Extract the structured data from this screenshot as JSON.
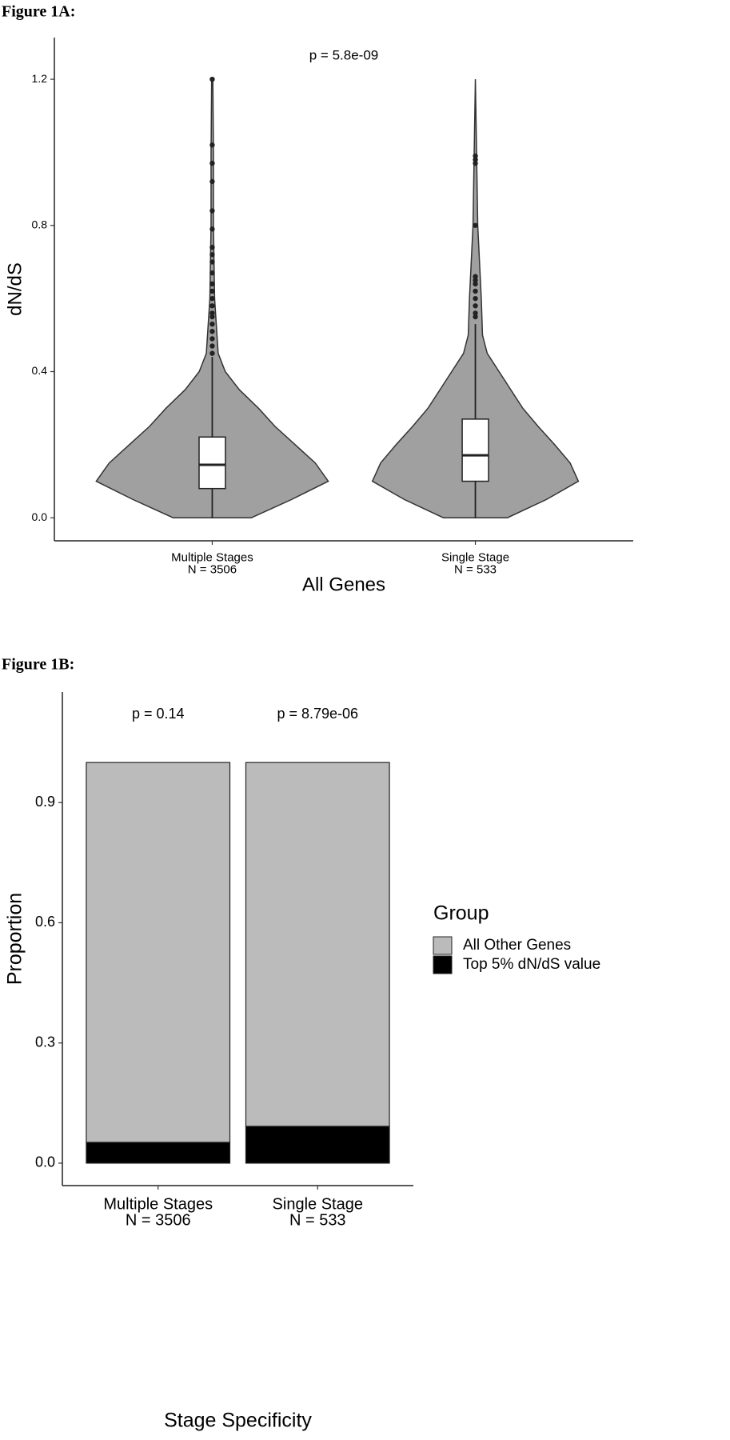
{
  "chart_data": [
    {
      "type": "violin",
      "figure_label": "Figure 1A:",
      "annotation": "p = 5.8e-09",
      "y_label": "dN/dS",
      "x_label": "All Genes",
      "categories": [
        "Multiple Stages",
        "Single Stage"
      ],
      "n_labels": [
        "N = 3506",
        "N = 533"
      ],
      "violin_color": "#a0a0a0",
      "box_color": "#ffffff",
      "density_y": [
        0,
        0.05,
        0.1,
        0.15,
        0.2,
        0.25,
        0.3,
        0.35,
        0.4,
        0.45,
        0.5,
        0.6,
        0.8,
        1.0,
        1.2
      ],
      "boxes": [
        {
          "whisker_low": 0,
          "q1": 0.08,
          "median": 0.145,
          "q3": 0.221,
          "whisker_high": 0.44,
          "outliers": [
            0.45,
            0.47,
            0.49,
            0.51,
            0.53,
            0.55,
            0.56,
            0.58,
            0.6,
            0.62,
            0.64,
            0.67,
            0.7,
            0.72,
            0.74,
            0.79,
            0.84,
            0.92,
            0.97,
            1.02,
            1.2
          ],
          "density": [
            0.33,
            0.67,
            0.98,
            0.87,
            0.7,
            0.53,
            0.39,
            0.23,
            0.11,
            0.05,
            0.04,
            0.02,
            0.01,
            0.01,
            0.005
          ]
        },
        {
          "whisker_low": 0,
          "q1": 0.1,
          "median": 0.171,
          "q3": 0.27,
          "whisker_high": 0.53,
          "outliers": [
            0.55,
            0.56,
            0.58,
            0.6,
            0.62,
            0.64,
            0.65,
            0.66,
            0.8,
            0.97,
            0.98,
            0.99
          ],
          "density": [
            0.27,
            0.6,
            0.87,
            0.8,
            0.67,
            0.53,
            0.4,
            0.3,
            0.2,
            0.1,
            0.06,
            0.05,
            0.02,
            0.01,
            0
          ]
        }
      ],
      "ylim": [
        -0.063,
        1.314
      ],
      "yticks": [
        {
          "value": 0,
          "label": "0.0"
        },
        0.4,
        0.8,
        1.2
      ]
    },
    {
      "type": "bar",
      "figure_label": "Figure 1B:",
      "annotations": [
        "p = 0.14",
        "p = 8.79e-06"
      ],
      "y_label": "Proportion",
      "x_label": "Stage Specificity",
      "legend_title": "Group",
      "legend": "right",
      "categories": [
        "Multiple Stages",
        "Single Stage"
      ],
      "n_labels": [
        "N = 3506",
        "N = 533"
      ],
      "series": [
        {
          "name": "All Other Genes",
          "color": "#bbbbbb",
          "values": [
            0.948,
            0.908
          ]
        },
        {
          "name": "Top 5% dN/dS value",
          "color": "#000000",
          "values": [
            0.052,
            0.092
          ]
        }
      ],
      "ylim": [
        -0.056,
        1.176
      ],
      "yticks": [
        {
          "value": 0,
          "label": "0.0"
        },
        0.3,
        0.6,
        0.9
      ]
    }
  ]
}
